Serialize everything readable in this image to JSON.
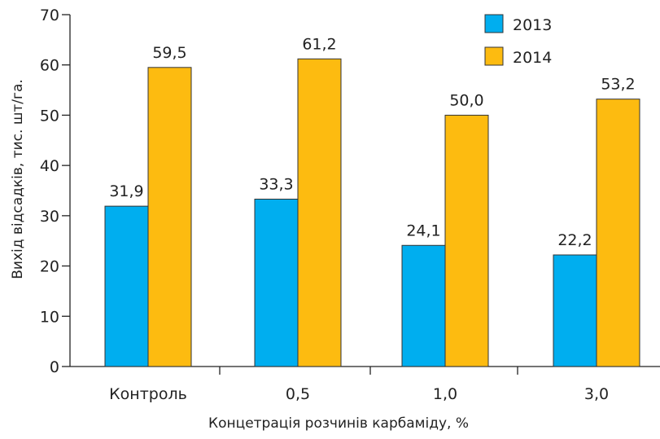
{
  "chart_data": {
    "type": "bar",
    "title": "",
    "xlabel": "Концетрація розчинів карбаміду, %",
    "ylabel": "Вихід відсадків, тис. шт/га.",
    "ylim": [
      0,
      70
    ],
    "yticks": [
      "0",
      "10",
      "20",
      "30",
      "40",
      "50",
      "60",
      "70"
    ],
    "categories": [
      "Контроль",
      "0,5",
      "1,0",
      "3,0"
    ],
    "series": [
      {
        "name": "2013",
        "color": "#00aeef",
        "values": [
          31.9,
          33.3,
          24.1,
          22.2
        ],
        "labels": [
          "31,9",
          "33,3",
          "24,1",
          "22,2"
        ]
      },
      {
        "name": "2014",
        "color": "#fdbb10",
        "values": [
          59.5,
          61.2,
          50.0,
          53.2
        ],
        "labels": [
          "59,5",
          "61,2",
          "50,0",
          "53,2"
        ]
      }
    ],
    "legend": "top-right",
    "grid": false
  }
}
